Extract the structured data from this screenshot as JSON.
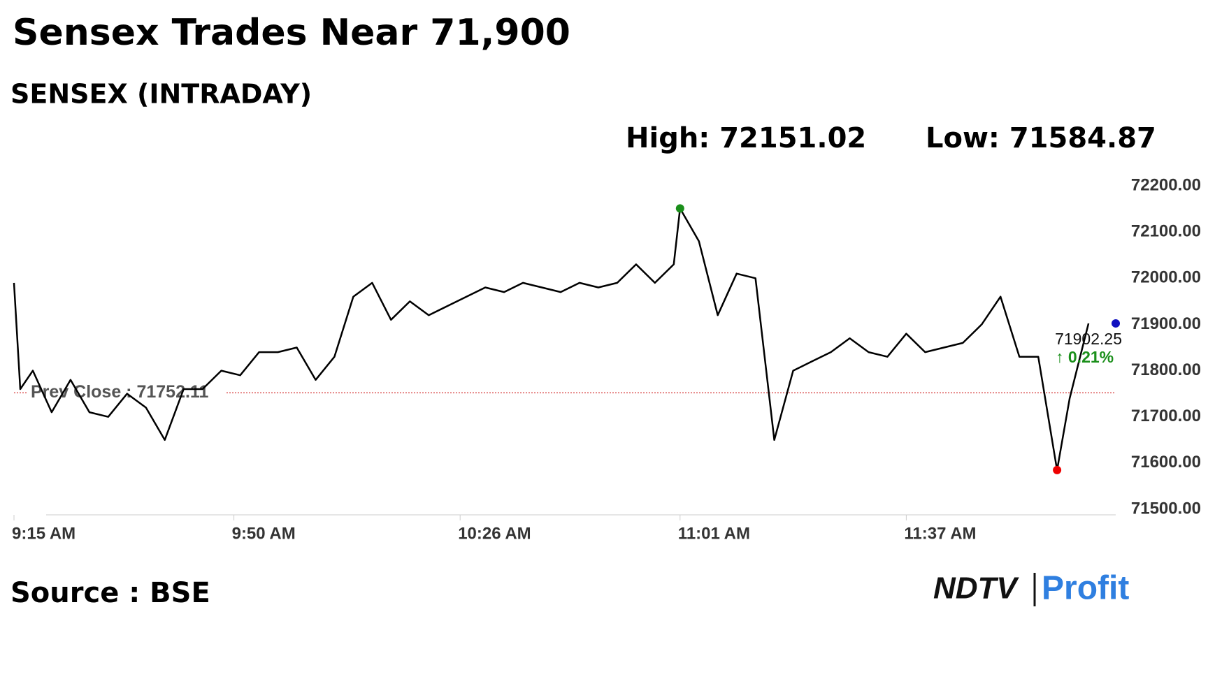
{
  "chart_data": {
    "type": "line",
    "title": "Sensex Trades Near 71,900",
    "subtitle": "SENSEX (INTRADAY)",
    "high": {
      "value": 72151.02,
      "label": "High: 72151.02"
    },
    "low": {
      "value": 71584.87,
      "label": "Low: 71584.87"
    },
    "prev_close": {
      "value": 71752.11,
      "label": "Prev Close : 71752.11"
    },
    "change": {
      "value": 0.21,
      "label": "↑ 0.21%"
    },
    "source": "Source : BSE",
    "logo": {
      "brand": "NDTV",
      "product": "Profit"
    },
    "x": [
      "9:15 AM",
      "9:16 AM",
      "9:18 AM",
      "9:21 AM",
      "9:24 AM",
      "9:27 AM",
      "9:30 AM",
      "9:33 AM",
      "9:36 AM",
      "9:39 AM",
      "9:42 AM",
      "9:45 AM",
      "9:48 AM",
      "9:51 AM",
      "9:54 AM",
      "9:57 AM",
      "10:00 AM",
      "10:03 AM",
      "10:06 AM",
      "10:09 AM",
      "10:12 AM",
      "10:15 AM",
      "10:18 AM",
      "10:21 AM",
      "10:24 AM",
      "10:27 AM",
      "10:30 AM",
      "10:33 AM",
      "10:36 AM",
      "10:39 AM",
      "10:42 AM",
      "10:45 AM",
      "10:48 AM",
      "10:51 AM",
      "10:54 AM",
      "10:57 AM",
      "11:00 AM",
      "11:01 AM",
      "11:04 AM",
      "11:07 AM",
      "11:10 AM",
      "11:13 AM",
      "11:16 AM",
      "11:19 AM",
      "11:22 AM",
      "11:25 AM",
      "11:28 AM",
      "11:31 AM",
      "11:34 AM",
      "11:37 AM",
      "11:40 AM",
      "11:43 AM",
      "11:46 AM",
      "11:49 AM",
      "11:52 AM",
      "11:55 AM",
      "11:58 AM",
      "12:01 PM",
      "12:03 PM",
      "12:06 PM"
    ],
    "series": [
      {
        "color": "#000000",
        "values": [
          71990,
          71760,
          71800,
          71710,
          71780,
          71710,
          71700,
          71750,
          71720,
          71650,
          71760,
          71760,
          71800,
          71790,
          71840,
          71840,
          71850,
          71780,
          71830,
          71960,
          71990,
          71910,
          71950,
          71920,
          71940,
          71960,
          71980,
          71970,
          71990,
          71980,
          71970,
          71990,
          71980,
          71990,
          72030,
          71990,
          72030,
          72151.02,
          72080,
          71920,
          72010,
          72000,
          71650,
          71800,
          71820,
          71840,
          71870,
          71840,
          71830,
          71880,
          71840,
          71850,
          71860,
          71900,
          71960,
          71830,
          71830,
          71584.87,
          71740,
          71902.25
        ]
      }
    ],
    "xlim": [
      "9:15 AM",
      "12:12 PM"
    ],
    "xticks": [
      "9:15 AM",
      "9:50 AM",
      "10:26 AM",
      "11:01 AM",
      "11:37 AM"
    ],
    "ylim": [
      71500,
      72200
    ],
    "yticks": [
      {
        "value": 71500,
        "label": "71500.00"
      },
      {
        "value": 71600,
        "label": "71600.00"
      },
      {
        "value": 71700,
        "label": "71700.00"
      },
      {
        "value": 71800,
        "label": "71800.00"
      },
      {
        "value": 71900,
        "label": "71900.00"
      },
      {
        "value": 72000,
        "label": "72000.00"
      },
      {
        "value": 72100,
        "label": "72100.00"
      },
      {
        "value": 72200,
        "label": "72200.00"
      }
    ],
    "grid": false
  }
}
